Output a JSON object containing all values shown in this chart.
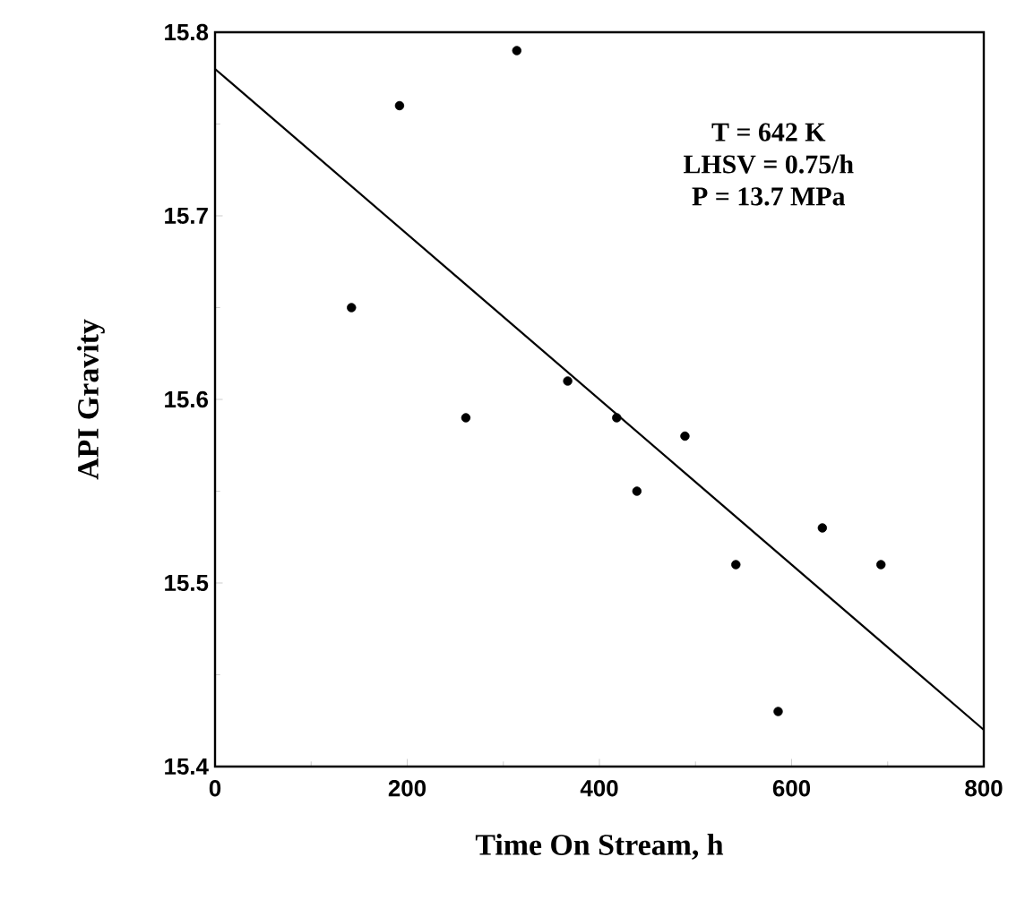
{
  "chart_data": {
    "type": "scatter",
    "xlabel": "Time On Stream, h",
    "ylabel": "API Gravity",
    "xlim": [
      0,
      800
    ],
    "xticks": [
      0,
      200,
      400,
      600,
      800
    ],
    "ylim": [
      15.4,
      15.8
    ],
    "yticks": [
      15.4,
      15.5,
      15.6,
      15.7,
      15.8
    ],
    "grid": false,
    "annotations": [
      "T = 642 K",
      "LHSV = 0.75/h",
      "P = 13.7 MPa"
    ],
    "series": [
      {
        "marker": "circle",
        "color": "#000000",
        "x": [
          142,
          192,
          261,
          314,
          367,
          418,
          439,
          489,
          542,
          586,
          632,
          693
        ],
        "values": [
          15.65,
          15.76,
          15.59,
          15.79,
          15.61,
          15.59,
          15.55,
          15.58,
          15.51,
          15.43,
          15.53,
          15.51
        ]
      },
      {
        "type": "line",
        "color": "#000000",
        "x": [
          0,
          800
        ],
        "values": [
          15.78,
          15.42
        ]
      }
    ]
  }
}
